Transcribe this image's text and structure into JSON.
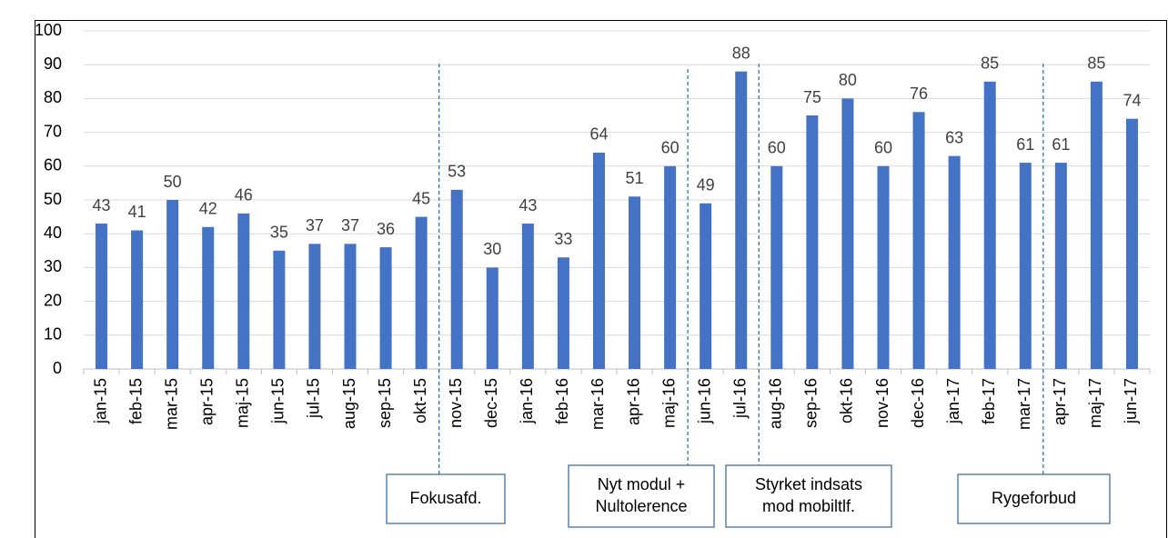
{
  "chart_data": {
    "type": "bar",
    "categories": [
      "jan-15",
      "feb-15",
      "mar-15",
      "apr-15",
      "maj-15",
      "jun-15",
      "jul-15",
      "aug-15",
      "sep-15",
      "okt-15",
      "nov-15",
      "dec-15",
      "jan-16",
      "feb-16",
      "mar-16",
      "apr-16",
      "maj-16",
      "jun-16",
      "jul-16",
      "aug-16",
      "sep-16",
      "okt-16",
      "nov-16",
      "dec-16",
      "jan-17",
      "feb-17",
      "mar-17",
      "apr-17",
      "maj-17",
      "jun-17"
    ],
    "values": [
      43,
      41,
      50,
      42,
      46,
      35,
      37,
      37,
      36,
      45,
      53,
      30,
      43,
      33,
      64,
      51,
      60,
      49,
      88,
      60,
      75,
      80,
      60,
      76,
      63,
      85,
      61,
      61,
      85,
      74
    ],
    "color": "#4472c4",
    "ylim": [
      0,
      100
    ],
    "yticks": [
      0,
      10,
      20,
      30,
      40,
      50,
      60,
      70,
      80,
      90,
      100
    ],
    "grid": true,
    "annotations": [
      {
        "lines": [
          "Fokusafd."
        ]
      },
      {
        "lines": [
          "Nyt modul +",
          "Nultolerence"
        ]
      },
      {
        "lines": [
          "Styrket indsats",
          "mod mobiltlf."
        ]
      },
      {
        "lines": [
          "Rygeforbud"
        ]
      }
    ]
  }
}
